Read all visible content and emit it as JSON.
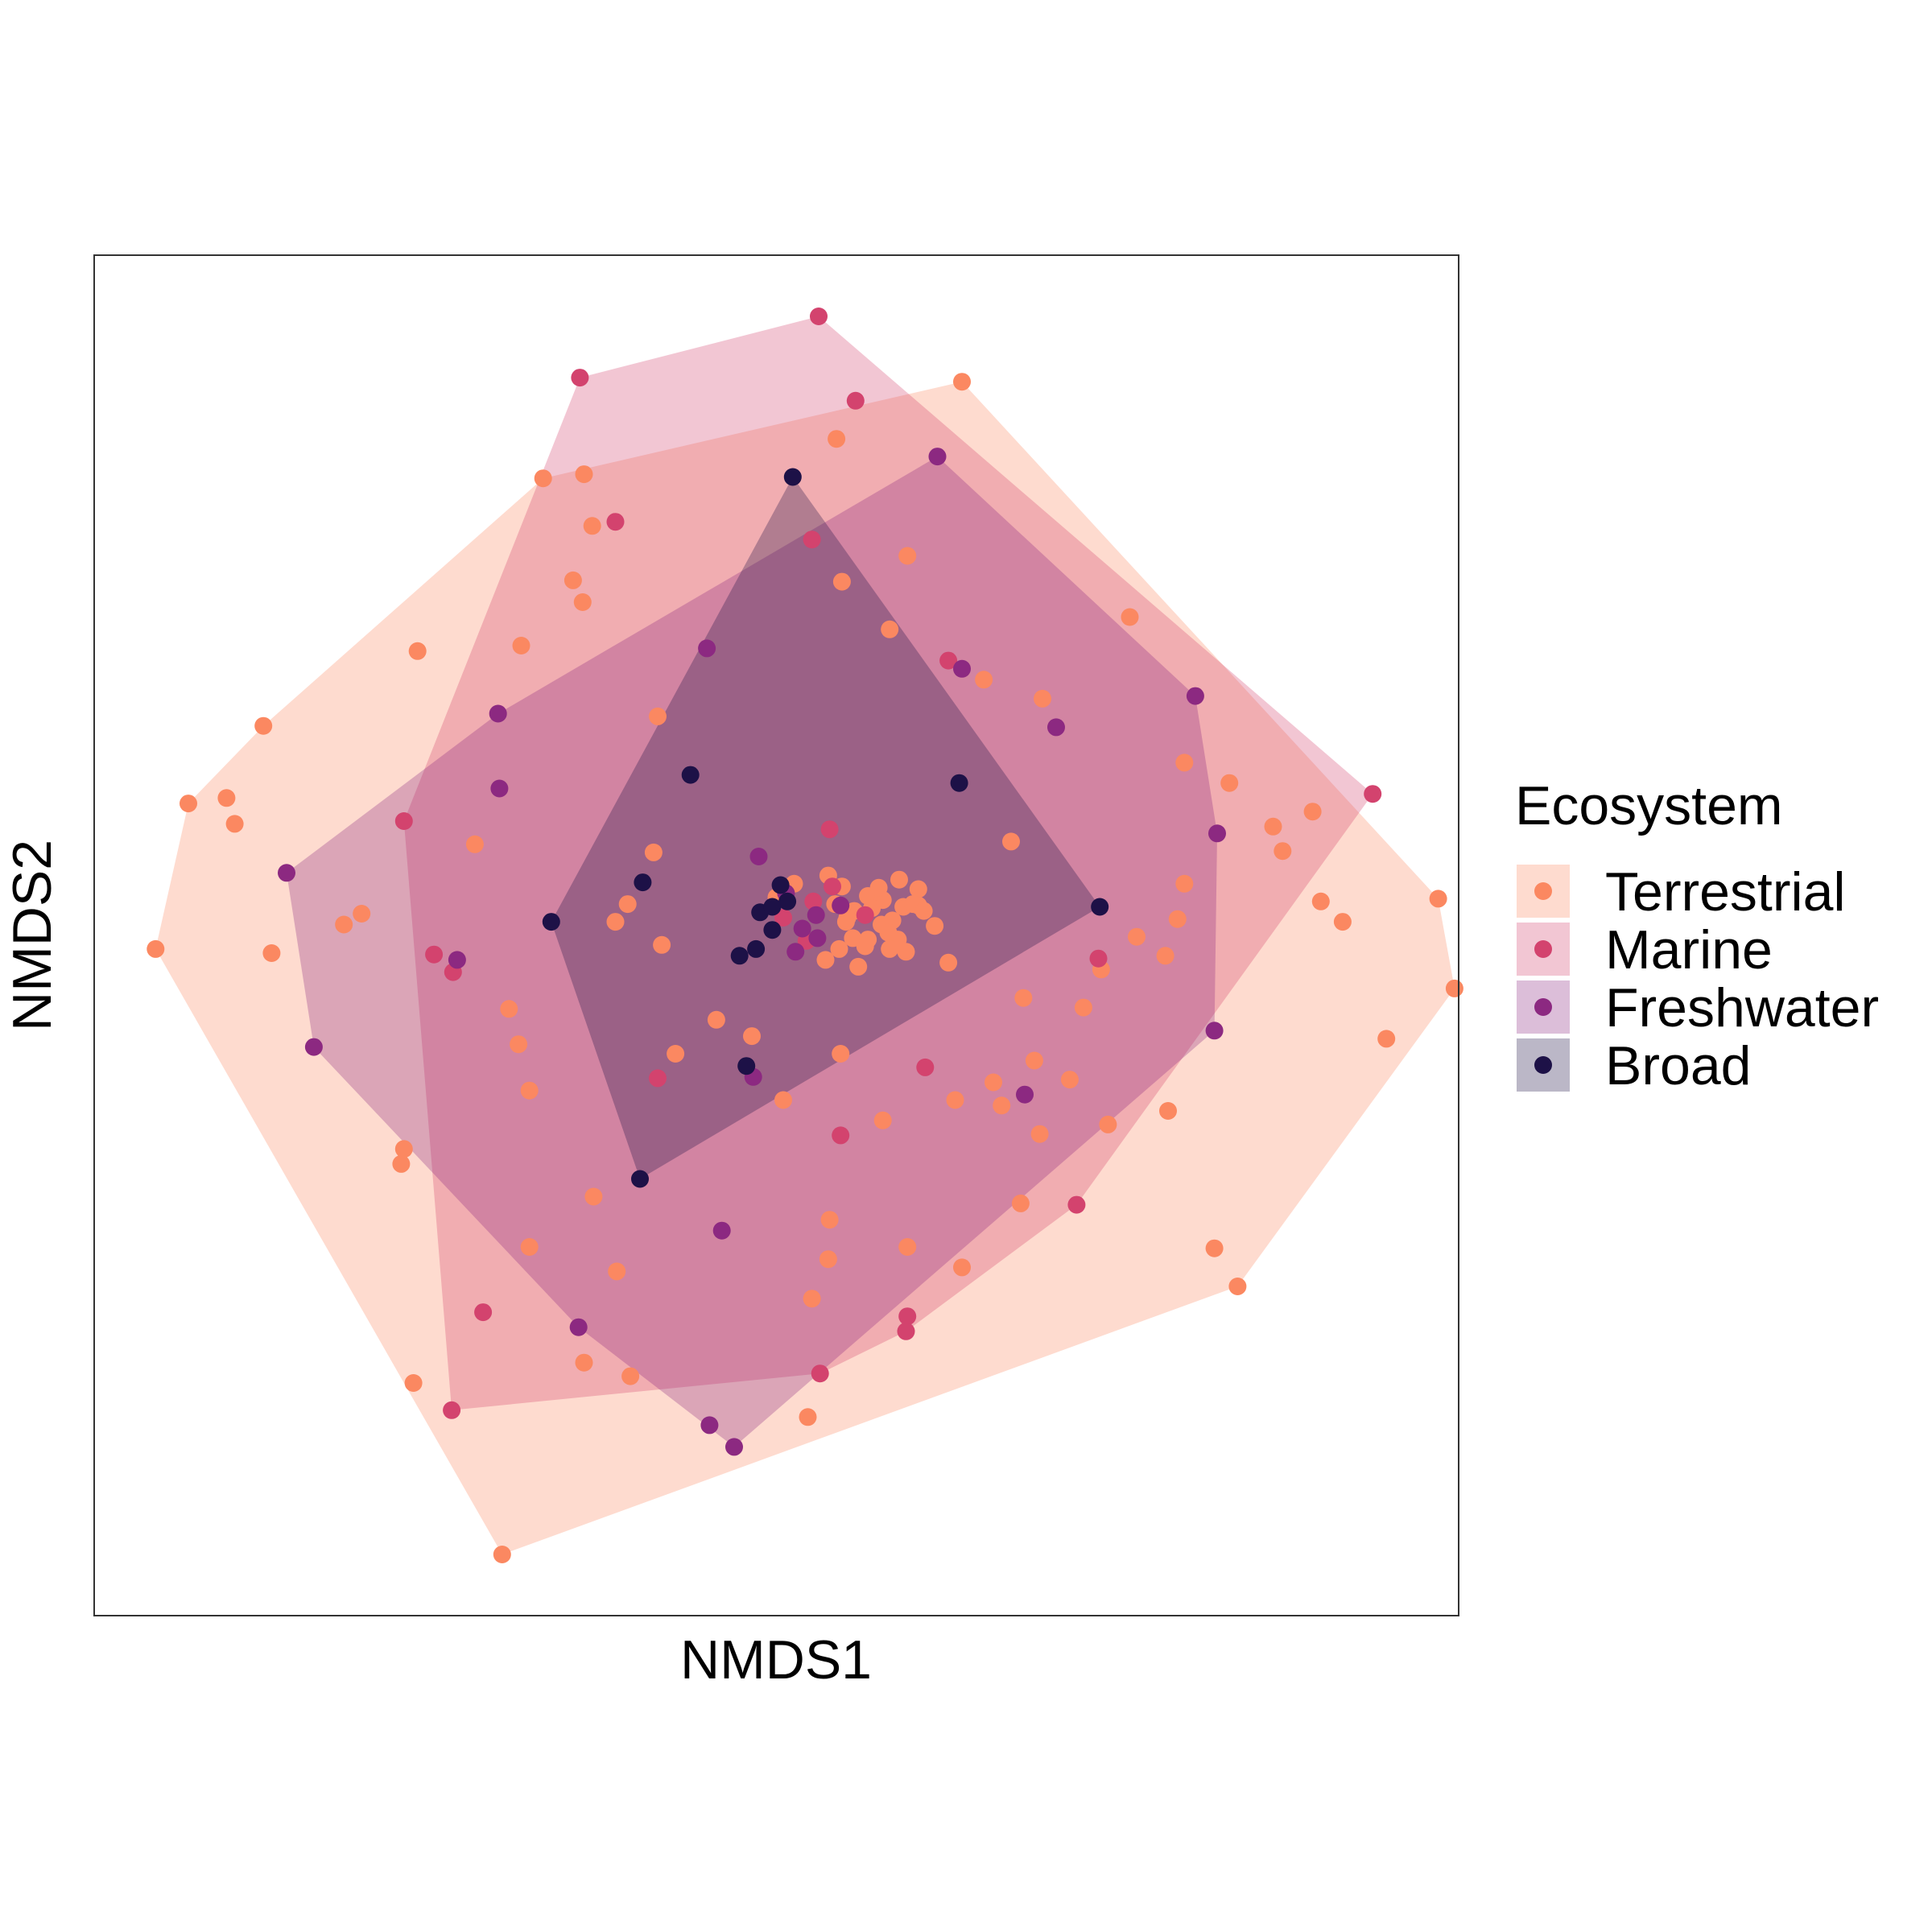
{
  "chart_data": {
    "type": "scatter",
    "title": "",
    "xlabel": "NMDS1",
    "ylabel": "NMDS2",
    "xlim": [
      0,
      1
    ],
    "ylim": [
      0,
      1
    ],
    "ticks": "none",
    "grid": false,
    "legend": {
      "title": "Ecosystem",
      "placement": "right"
    },
    "hulls": true,
    "series": [
      {
        "name": "Terrestrial",
        "color": "#FB8861",
        "points": [
          [
            0.636,
            0.907
          ],
          [
            0.544,
            0.865
          ],
          [
            0.329,
            0.836
          ],
          [
            0.365,
            0.801
          ],
          [
            0.359,
            0.839
          ],
          [
            0.548,
            0.76
          ],
          [
            0.596,
            0.779
          ],
          [
            0.351,
            0.761
          ],
          [
            0.413,
            0.661
          ],
          [
            0.358,
            0.745
          ],
          [
            0.237,
            0.709
          ],
          [
            0.313,
            0.713
          ],
          [
            0.124,
            0.654
          ],
          [
            0.097,
            0.601
          ],
          [
            0.069,
            0.597
          ],
          [
            0.103,
            0.582
          ],
          [
            0.045,
            0.49
          ],
          [
            0.13,
            0.487
          ],
          [
            0.279,
            0.567
          ],
          [
            0.183,
            0.508
          ],
          [
            0.227,
            0.343
          ],
          [
            0.311,
            0.42
          ],
          [
            0.304,
            0.446
          ],
          [
            0.319,
            0.386
          ],
          [
            0.196,
            0.516
          ],
          [
            0.382,
            0.51
          ],
          [
            0.391,
            0.523
          ],
          [
            0.41,
            0.561
          ],
          [
            0.416,
            0.493
          ],
          [
            0.456,
            0.438
          ],
          [
            0.426,
            0.413
          ],
          [
            0.547,
            0.413
          ],
          [
            0.482,
            0.426
          ],
          [
            0.505,
            0.379
          ],
          [
            0.366,
            0.308
          ],
          [
            0.225,
            0.332
          ],
          [
            0.359,
            0.186
          ],
          [
            0.234,
            0.171
          ],
          [
            0.319,
            0.271
          ],
          [
            0.383,
            0.253
          ],
          [
            0.393,
            0.176
          ],
          [
            0.299,
            0.045
          ],
          [
            0.523,
            0.146
          ],
          [
            0.538,
            0.262
          ],
          [
            0.539,
            0.291
          ],
          [
            0.578,
            0.364
          ],
          [
            0.631,
            0.379
          ],
          [
            0.659,
            0.392
          ],
          [
            0.689,
            0.408
          ],
          [
            0.681,
            0.454
          ],
          [
            0.725,
            0.447
          ],
          [
            0.738,
            0.475
          ],
          [
            0.764,
            0.499
          ],
          [
            0.785,
            0.485
          ],
          [
            0.799,
            0.627
          ],
          [
            0.864,
            0.58
          ],
          [
            0.832,
            0.612
          ],
          [
            0.871,
            0.562
          ],
          [
            0.899,
            0.525
          ],
          [
            0.915,
            0.51
          ],
          [
            0.947,
            0.424
          ],
          [
            0.997,
            0.461
          ],
          [
            0.985,
            0.527
          ],
          [
            0.893,
            0.591
          ],
          [
            0.799,
            0.538
          ],
          [
            0.652,
            0.688
          ],
          [
            0.759,
            0.734
          ],
          [
            0.695,
            0.674
          ],
          [
            0.583,
            0.725
          ],
          [
            0.672,
            0.569
          ],
          [
            0.604,
            0.522
          ],
          [
            0.679,
            0.303
          ],
          [
            0.743,
            0.361
          ],
          [
            0.794,
            0.512
          ],
          [
            0.821,
            0.27
          ],
          [
            0.838,
            0.242
          ],
          [
            0.596,
            0.271
          ],
          [
            0.526,
            0.233
          ],
          [
            0.636,
            0.256
          ],
          [
            0.665,
            0.375
          ],
          [
            0.715,
            0.394
          ],
          [
            0.693,
            0.354
          ],
          [
            0.787,
            0.371
          ],
          [
            0.5,
            0.528
          ],
          [
            0.513,
            0.538
          ],
          [
            0.538,
            0.544
          ],
          [
            0.548,
            0.536
          ],
          [
            0.557,
            0.518
          ],
          [
            0.567,
            0.529
          ],
          [
            0.585,
            0.511
          ],
          [
            0.593,
            0.521
          ],
          [
            0.604,
            0.534
          ],
          [
            0.551,
            0.51
          ],
          [
            0.556,
            0.498
          ],
          [
            0.567,
            0.497
          ],
          [
            0.577,
            0.508
          ],
          [
            0.578,
            0.526
          ],
          [
            0.582,
            0.502
          ],
          [
            0.589,
            0.497
          ],
          [
            0.6,
            0.523
          ],
          [
            0.608,
            0.518
          ],
          [
            0.616,
            0.507
          ],
          [
            0.626,
            0.48
          ],
          [
            0.565,
            0.492
          ],
          [
            0.552,
            0.513
          ],
          [
            0.543,
            0.523
          ],
          [
            0.56,
            0.477
          ],
          [
            0.575,
            0.535
          ],
          [
            0.59,
            0.541
          ],
          [
            0.57,
            0.52
          ],
          [
            0.583,
            0.49
          ],
          [
            0.546,
            0.49
          ],
          [
            0.536,
            0.482
          ],
          [
            0.595,
            0.488
          ]
        ]
      },
      {
        "name": "Marine",
        "color": "#D3436E",
        "points": [
          [
            0.531,
            0.955
          ],
          [
            0.356,
            0.91
          ],
          [
            0.558,
            0.893
          ],
          [
            0.382,
            0.804
          ],
          [
            0.526,
            0.791
          ],
          [
            0.626,
            0.702
          ],
          [
            0.227,
            0.584
          ],
          [
            0.249,
            0.486
          ],
          [
            0.263,
            0.473
          ],
          [
            0.539,
            0.578
          ],
          [
            0.937,
            0.604
          ],
          [
            0.736,
            0.483
          ],
          [
            0.547,
            0.353
          ],
          [
            0.609,
            0.403
          ],
          [
            0.72,
            0.302
          ],
          [
            0.285,
            0.223
          ],
          [
            0.262,
            0.151
          ],
          [
            0.596,
            0.22
          ],
          [
            0.595,
            0.209
          ],
          [
            0.532,
            0.178
          ],
          [
            0.413,
            0.395
          ],
          [
            0.541,
            0.536
          ],
          [
            0.527,
            0.525
          ],
          [
            0.565,
            0.515
          ],
          [
            0.505,
            0.513
          ],
          [
            0.522,
            0.496
          ]
        ]
      },
      {
        "name": "Freshwater",
        "color": "#8C2981",
        "points": [
          [
            0.618,
            0.852
          ],
          [
            0.449,
            0.711
          ],
          [
            0.636,
            0.696
          ],
          [
            0.705,
            0.653
          ],
          [
            0.807,
            0.676
          ],
          [
            0.296,
            0.663
          ],
          [
            0.297,
            0.608
          ],
          [
            0.141,
            0.546
          ],
          [
            0.161,
            0.418
          ],
          [
            0.266,
            0.482
          ],
          [
            0.823,
            0.575
          ],
          [
            0.821,
            0.43
          ],
          [
            0.682,
            0.383
          ],
          [
            0.46,
            0.283
          ],
          [
            0.483,
            0.396
          ],
          [
            0.355,
            0.212
          ],
          [
            0.451,
            0.14
          ],
          [
            0.469,
            0.124
          ],
          [
            0.507,
            0.531
          ],
          [
            0.529,
            0.515
          ],
          [
            0.547,
            0.522
          ],
          [
            0.519,
            0.505
          ],
          [
            0.53,
            0.498
          ],
          [
            0.514,
            0.488
          ],
          [
            0.487,
            0.558
          ]
        ]
      },
      {
        "name": "Broad",
        "color": "#1D1147",
        "points": [
          [
            0.512,
            0.837
          ],
          [
            0.437,
            0.618
          ],
          [
            0.634,
            0.612
          ],
          [
            0.402,
            0.539
          ],
          [
            0.335,
            0.51
          ],
          [
            0.737,
            0.521
          ],
          [
            0.473,
            0.485
          ],
          [
            0.478,
            0.404
          ],
          [
            0.4,
            0.321
          ],
          [
            0.503,
            0.537
          ],
          [
            0.508,
            0.525
          ],
          [
            0.488,
            0.517
          ],
          [
            0.497,
            0.504
          ],
          [
            0.485,
            0.49
          ],
          [
            0.497,
            0.521
          ]
        ]
      }
    ]
  }
}
